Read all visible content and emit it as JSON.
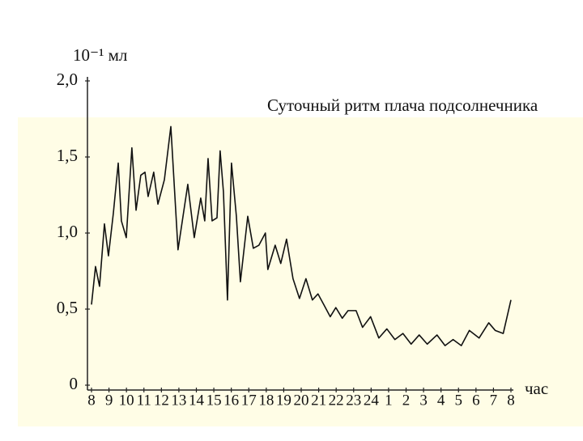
{
  "chart_data": {
    "type": "line",
    "title": "Суточный ритм плача подсолнечника",
    "y_label": "10⁻¹ мл",
    "x_label": "час",
    "color": "#111111",
    "grid": false,
    "xlim": [
      0,
      24
    ],
    "ylim": [
      0,
      2
    ],
    "yticks": [
      0,
      {
        "value": 0.5,
        "label": "0,5"
      },
      {
        "value": 1,
        "label": "1,0"
      },
      {
        "value": 1.5,
        "label": "1,5"
      },
      {
        "value": 2,
        "label": "2,0"
      }
    ],
    "xticks": [
      {
        "value": 0,
        "label": "8"
      },
      {
        "value": 1,
        "label": "9"
      },
      {
        "value": 2,
        "label": "10"
      },
      {
        "value": 3,
        "label": "11"
      },
      {
        "value": 4,
        "label": "12"
      },
      {
        "value": 5,
        "label": "13"
      },
      {
        "value": 6,
        "label": "14"
      },
      {
        "value": 7,
        "label": "15"
      },
      {
        "value": 8,
        "label": "16"
      },
      {
        "value": 9,
        "label": "17"
      },
      {
        "value": 10,
        "label": "18"
      },
      {
        "value": 11,
        "label": "19"
      },
      {
        "value": 12,
        "label": "20"
      },
      {
        "value": 13,
        "label": "21"
      },
      {
        "value": 14,
        "label": "22"
      },
      {
        "value": 15,
        "label": "23"
      },
      {
        "value": 16,
        "label": "24"
      },
      {
        "value": 17,
        "label": "1"
      },
      {
        "value": 18,
        "label": "2"
      },
      {
        "value": 19,
        "label": "3"
      },
      {
        "value": 20,
        "label": "4"
      },
      {
        "value": 21,
        "label": "5"
      },
      {
        "value": 22,
        "label": "6"
      },
      {
        "value": 23,
        "label": "7"
      },
      {
        "value": 24,
        "label": "8"
      }
    ],
    "x": [
      0,
      0.23,
      0.46,
      0.74,
      0.97,
      1.25,
      1.53,
      1.71,
      1.99,
      2.31,
      2.55,
      2.82,
      3.06,
      3.24,
      3.56,
      3.8,
      4.17,
      4.54,
      4.95,
      5.51,
      5.88,
      6.25,
      6.48,
      6.67,
      6.9,
      7.18,
      7.36,
      7.55,
      7.78,
      8.01,
      8.29,
      8.52,
      8.94,
      9.26,
      9.58,
      9.95,
      10.09,
      10.51,
      10.83,
      11.16,
      11.53,
      11.9,
      12.27,
      12.64,
      12.96,
      13.29,
      13.66,
      13.98,
      14.35,
      14.68,
      15.14,
      15.51,
      15.97,
      16.44,
      16.9,
      17.36,
      17.82,
      18.29,
      18.75,
      19.21,
      19.77,
      20.23,
      20.69,
      21.16,
      21.62,
      22.18,
      22.73,
      23.1,
      23.56,
      24
    ],
    "values": [
      0.53,
      0.78,
      0.65,
      1.06,
      0.85,
      1.13,
      1.46,
      1.08,
      0.97,
      1.56,
      1.15,
      1.38,
      1.4,
      1.24,
      1.4,
      1.19,
      1.35,
      1.7,
      0.89,
      1.32,
      0.97,
      1.23,
      1.08,
      1.49,
      1.08,
      1.1,
      1.54,
      1.27,
      0.56,
      1.46,
      1.11,
      0.68,
      1.11,
      0.9,
      0.92,
      1,
      0.76,
      0.92,
      0.8,
      0.96,
      0.7,
      0.57,
      0.7,
      0.56,
      0.6,
      0.53,
      0.45,
      0.51,
      0.44,
      0.49,
      0.49,
      0.38,
      0.45,
      0.31,
      0.37,
      0.3,
      0.34,
      0.27,
      0.33,
      0.27,
      0.33,
      0.26,
      0.3,
      0.26,
      0.36,
      0.31,
      0.41,
      0.36,
      0.34,
      0.56
    ]
  }
}
